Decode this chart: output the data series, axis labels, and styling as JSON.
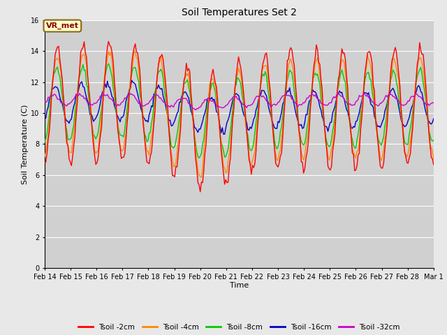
{
  "title": "Soil Temperatures Set 2",
  "xlabel": "Time",
  "ylabel": "Soil Temperature (C)",
  "annotation": "VR_met",
  "ylim": [
    0,
    16
  ],
  "yticks": [
    0,
    2,
    4,
    6,
    8,
    10,
    12,
    14,
    16
  ],
  "fig_bg_color": "#e8e8e8",
  "plot_bg_color": "#d0d0d0",
  "series_colors": {
    "Tsoil -2cm": "#ff0000",
    "Tsoil -4cm": "#ff8800",
    "Tsoil -8cm": "#00cc00",
    "Tsoil -16cm": "#0000cc",
    "Tsoil -32cm": "#cc00cc"
  },
  "x_labels": [
    "Feb 14",
    "Feb 15",
    "Feb 16",
    "Feb 17",
    "Feb 18",
    "Feb 19",
    "Feb 20",
    "Feb 21",
    "Feb 22",
    "Feb 23",
    "Feb 24",
    "Feb 25",
    "Feb 26",
    "Feb 27",
    "Feb 28",
    "Mar 1"
  ],
  "n_points": 336
}
